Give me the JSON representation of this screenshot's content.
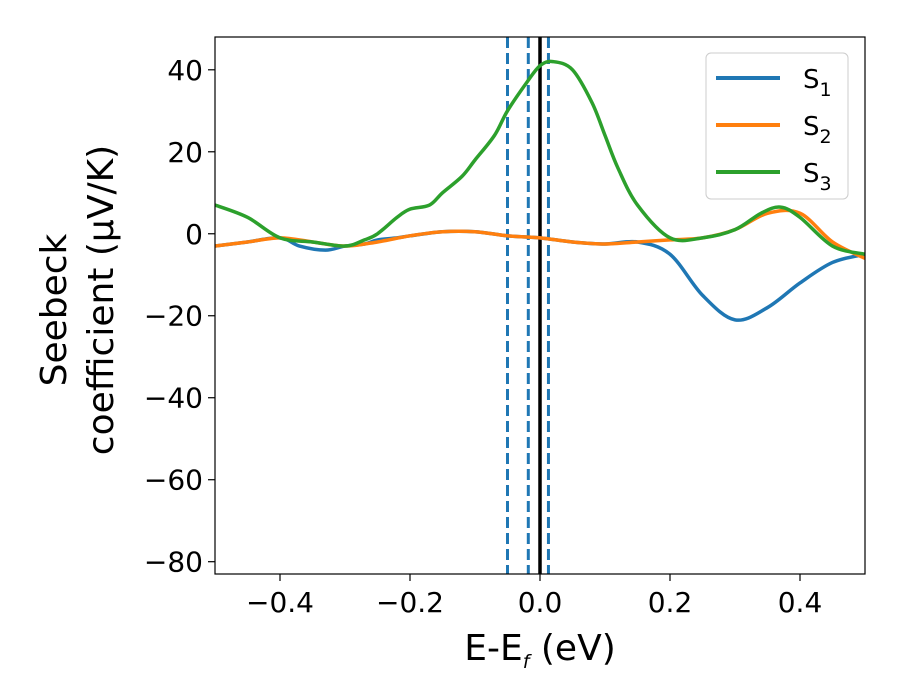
{
  "chart_data": {
    "type": "line",
    "title": "",
    "xlabel_main": "E-E",
    "xlabel_sub": "f",
    "xlabel_unit": " (eV)",
    "ylabel_line1": "Seebeck",
    "ylabel_line2": "coefficient  (μV/K)",
    "xlim": [
      -0.5,
      0.5
    ],
    "ylim": [
      -83,
      48
    ],
    "x_ticks": [
      -0.4,
      -0.2,
      0.0,
      0.2,
      0.4
    ],
    "x_tick_labels": [
      "−0.4",
      "−0.2",
      "0.0",
      "0.2",
      "0.4"
    ],
    "y_ticks": [
      40,
      20,
      0,
      -20,
      -40,
      -60,
      -80
    ],
    "y_tick_labels": [
      "40",
      "20",
      "0",
      "−20",
      "−40",
      "−60",
      "−80"
    ],
    "grid": false,
    "legend_position": "top-right",
    "vertical_lines": [
      {
        "x": -0.05,
        "style": "dashed",
        "color": "#1f77b4"
      },
      {
        "x": -0.018,
        "style": "dashed",
        "color": "#1f77b4"
      },
      {
        "x": 0.0,
        "style": "solid",
        "color": "#000000"
      },
      {
        "x": 0.013,
        "style": "dashed",
        "color": "#1f77b4"
      }
    ],
    "series": [
      {
        "name": "S",
        "sub": "1",
        "color": "#1f77b4",
        "x": [
          -0.5,
          -0.45,
          -0.4,
          -0.37,
          -0.33,
          -0.3,
          -0.27,
          -0.25,
          -0.22,
          -0.2,
          -0.15,
          -0.1,
          -0.05,
          0.0,
          0.05,
          0.1,
          0.15,
          0.2,
          0.25,
          0.3,
          0.35,
          0.4,
          0.45,
          0.5
        ],
        "y": [
          -3,
          -2,
          -1,
          -3,
          -4,
          -3,
          -2.5,
          -1.5,
          -1,
          -0.5,
          0.5,
          0.5,
          -0.5,
          -1,
          -2,
          -2.5,
          -2,
          -5,
          -15,
          -21,
          -18,
          -12,
          -7,
          -5
        ]
      },
      {
        "name": "S",
        "sub": "2",
        "color": "#ff7f0e",
        "x": [
          -0.5,
          -0.45,
          -0.4,
          -0.35,
          -0.3,
          -0.25,
          -0.2,
          -0.15,
          -0.1,
          -0.05,
          0.0,
          0.05,
          0.1,
          0.15,
          0.2,
          0.25,
          0.3,
          0.35,
          0.4,
          0.45,
          0.5
        ],
        "y": [
          -3,
          -2,
          -1,
          -2,
          -3,
          -2,
          -0.5,
          0.5,
          0.5,
          -0.5,
          -1,
          -2,
          -2.5,
          -2,
          -1.5,
          -1,
          1,
          5,
          5,
          -2,
          -6
        ]
      },
      {
        "name": "S",
        "sub": "3",
        "color": "#2ca02c",
        "x": [
          -0.5,
          -0.45,
          -0.4,
          -0.35,
          -0.3,
          -0.27,
          -0.25,
          -0.22,
          -0.2,
          -0.17,
          -0.15,
          -0.12,
          -0.1,
          -0.07,
          -0.05,
          -0.02,
          0.0,
          0.02,
          0.05,
          0.08,
          0.1,
          0.12,
          0.15,
          0.2,
          0.25,
          0.3,
          0.34,
          0.37,
          0.4,
          0.45,
          0.5
        ],
        "y": [
          7,
          4,
          -1,
          -2,
          -3,
          -1.5,
          0,
          4,
          6,
          7,
          10,
          14,
          18,
          24,
          30,
          37,
          41,
          42,
          40,
          32,
          24,
          16,
          7,
          -1,
          -1,
          1,
          5,
          6.5,
          4,
          -3,
          -5
        ]
      }
    ]
  }
}
